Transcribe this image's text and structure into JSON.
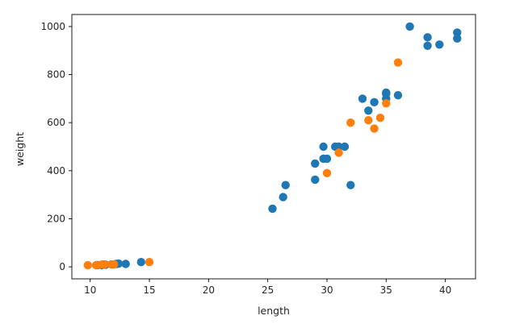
{
  "chart_data": {
    "type": "scatter",
    "title": "",
    "xlabel": "length",
    "ylabel": "weight",
    "xlim": [
      8.45,
      42.55
    ],
    "ylim": [
      -50,
      1050
    ],
    "x_ticks": [
      10,
      15,
      20,
      25,
      30,
      35,
      40
    ],
    "y_ticks": [
      0,
      200,
      400,
      600,
      800,
      1000
    ],
    "grid": false,
    "legend": null,
    "series": [
      {
        "color": "#1f77b4",
        "points": [
          [
            25.4,
            242
          ],
          [
            26.3,
            290
          ],
          [
            26.5,
            340
          ],
          [
            29.0,
            363
          ],
          [
            29.0,
            430
          ],
          [
            29.7,
            450
          ],
          [
            29.7,
            500
          ],
          [
            30.0,
            450
          ],
          [
            30.7,
            500
          ],
          [
            31.0,
            500
          ],
          [
            31.5,
            500
          ],
          [
            32.0,
            340
          ],
          [
            33.0,
            700
          ],
          [
            33.5,
            650
          ],
          [
            34.0,
            685
          ],
          [
            35.0,
            700
          ],
          [
            35.0,
            725
          ],
          [
            35.0,
            720
          ],
          [
            36.0,
            714
          ],
          [
            37.0,
            1000
          ],
          [
            38.5,
            920
          ],
          [
            38.5,
            955
          ],
          [
            39.5,
            925
          ],
          [
            41.0,
            975
          ],
          [
            41.0,
            950
          ],
          [
            10.6,
            7.5
          ],
          [
            11.0,
            7.0
          ],
          [
            11.2,
            9.8
          ],
          [
            11.3,
            8.7
          ],
          [
            11.8,
            10.0
          ],
          [
            12.0,
            9.9
          ],
          [
            12.2,
            12.2
          ],
          [
            12.4,
            13.4
          ],
          [
            13.0,
            12.2
          ],
          [
            14.3,
            19.7
          ]
        ]
      },
      {
        "color": "#ff7f0e",
        "points": [
          [
            30.0,
            390
          ],
          [
            31.0,
            475
          ],
          [
            32.0,
            600
          ],
          [
            33.5,
            610
          ],
          [
            34.0,
            575
          ],
          [
            34.5,
            620
          ],
          [
            35.0,
            680
          ],
          [
            36.0,
            850
          ],
          [
            9.8,
            6.7
          ],
          [
            10.5,
            6.8
          ],
          [
            11.0,
            9.7
          ],
          [
            11.2,
            9.9
          ],
          [
            11.8,
            9.8
          ],
          [
            12.0,
            9.9
          ],
          [
            15.0,
            19.9
          ]
        ]
      }
    ]
  }
}
